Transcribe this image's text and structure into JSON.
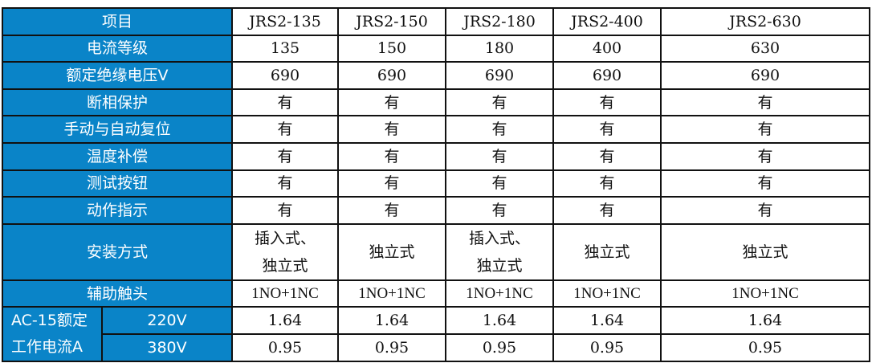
{
  "header": {
    "label": "项目",
    "models": [
      "JRS2-135",
      "JRS2-150",
      "JRS2-180",
      "JRS2-400",
      "JRS2-630"
    ]
  },
  "rows": [
    {
      "label": "电流等级",
      "values": [
        "135",
        "150",
        "180",
        "400",
        "630"
      ]
    },
    {
      "label": "额定绝缘电压V",
      "values": [
        "690",
        "690",
        "690",
        "690",
        "690"
      ]
    },
    {
      "label": "断相保护",
      "values": [
        "有",
        "有",
        "有",
        "有",
        "有"
      ]
    },
    {
      "label": "手动与自动复位",
      "values": [
        "有",
        "有",
        "有",
        "有",
        "有"
      ]
    },
    {
      "label": "温度补偿",
      "values": [
        "有",
        "有",
        "有",
        "有",
        "有"
      ]
    },
    {
      "label": "测试按钮",
      "values": [
        "有",
        "有",
        "有",
        "有",
        "有"
      ]
    },
    {
      "label": "动作指示",
      "values": [
        "有",
        "有",
        "有",
        "有",
        "有"
      ]
    },
    {
      "label": "安装方式",
      "values": [
        "插入式、独立式",
        "独立式",
        "插入式、独立式",
        "独立式",
        "独立式"
      ]
    },
    {
      "label": "辅助触头",
      "values": [
        "1NO+1NC",
        "1NO+1NC",
        "1NO+1NC",
        "1NO+1NC",
        "1NO+1NC"
      ]
    }
  ],
  "ac15": {
    "label": "AC-15额定工作电流A",
    "rows": [
      {
        "voltage": "220V",
        "values": [
          "1.64",
          "1.64",
          "1.64",
          "1.64",
          "1.64"
        ]
      },
      {
        "voltage": "380V",
        "values": [
          "0.95",
          "0.95",
          "0.95",
          "0.95",
          "0.95"
        ]
      }
    ]
  },
  "colors": {
    "header_bg": "#0a84c8"
  }
}
